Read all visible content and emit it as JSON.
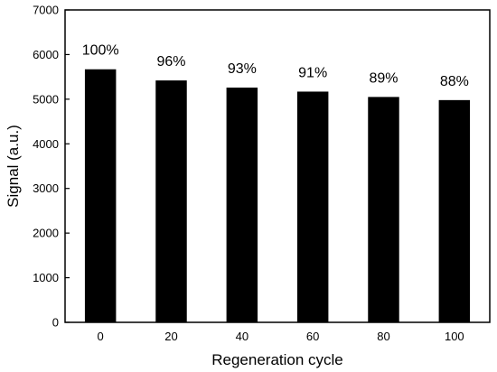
{
  "chart_data": {
    "type": "bar",
    "categories": [
      "0",
      "20",
      "40",
      "60",
      "80",
      "100"
    ],
    "values": [
      5670,
      5420,
      5260,
      5170,
      5050,
      4980
    ],
    "data_labels": [
      "100%",
      "96%",
      "93%",
      "91%",
      "89%",
      "88%"
    ],
    "xlabel": "Regeneration cycle",
    "ylabel": "Signal (a.u.)",
    "ylim": [
      0,
      7000
    ],
    "yticks": [
      0,
      1000,
      2000,
      3000,
      4000,
      5000,
      6000,
      7000
    ],
    "bar_color": "#000000",
    "grid": false,
    "legend": "none"
  }
}
